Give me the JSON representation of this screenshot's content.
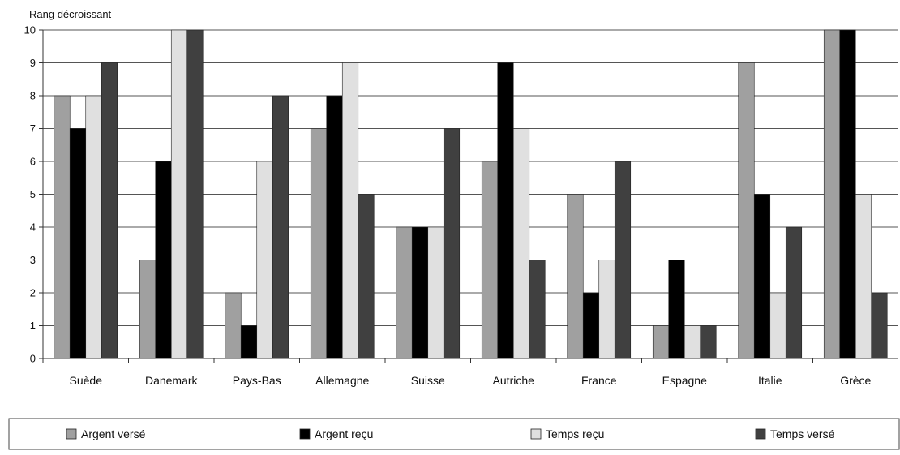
{
  "chart_data": {
    "type": "bar",
    "ylabel": "Rang décroissant",
    "xlabel": "",
    "ylim": [
      0,
      10
    ],
    "yticks": [
      0,
      1,
      2,
      3,
      4,
      5,
      6,
      7,
      8,
      9,
      10
    ],
    "grid": true,
    "legend_position": "bottom",
    "categories": [
      "Suède",
      "Danemark",
      "Pays-Bas",
      "Allemagne",
      "Suisse",
      "Autriche",
      "France",
      "Espagne",
      "Italie",
      "Grèce"
    ],
    "series": [
      {
        "name": "Argent versé",
        "color": "#a0a0a0",
        "values": [
          8,
          3,
          2,
          7,
          4,
          6,
          5,
          1,
          9,
          10
        ]
      },
      {
        "name": "Argent reçu",
        "color": "#000000",
        "values": [
          7,
          6,
          1,
          8,
          4,
          9,
          2,
          3,
          5,
          10
        ]
      },
      {
        "name": "Temps reçu",
        "color": "#e0e0e0",
        "values": [
          8,
          10,
          6,
          9,
          4,
          7,
          3,
          1,
          2,
          5
        ]
      },
      {
        "name": "Temps versé",
        "color": "#404040",
        "values": [
          9,
          10,
          8,
          5,
          7,
          3,
          6,
          1,
          4,
          2
        ]
      }
    ]
  }
}
